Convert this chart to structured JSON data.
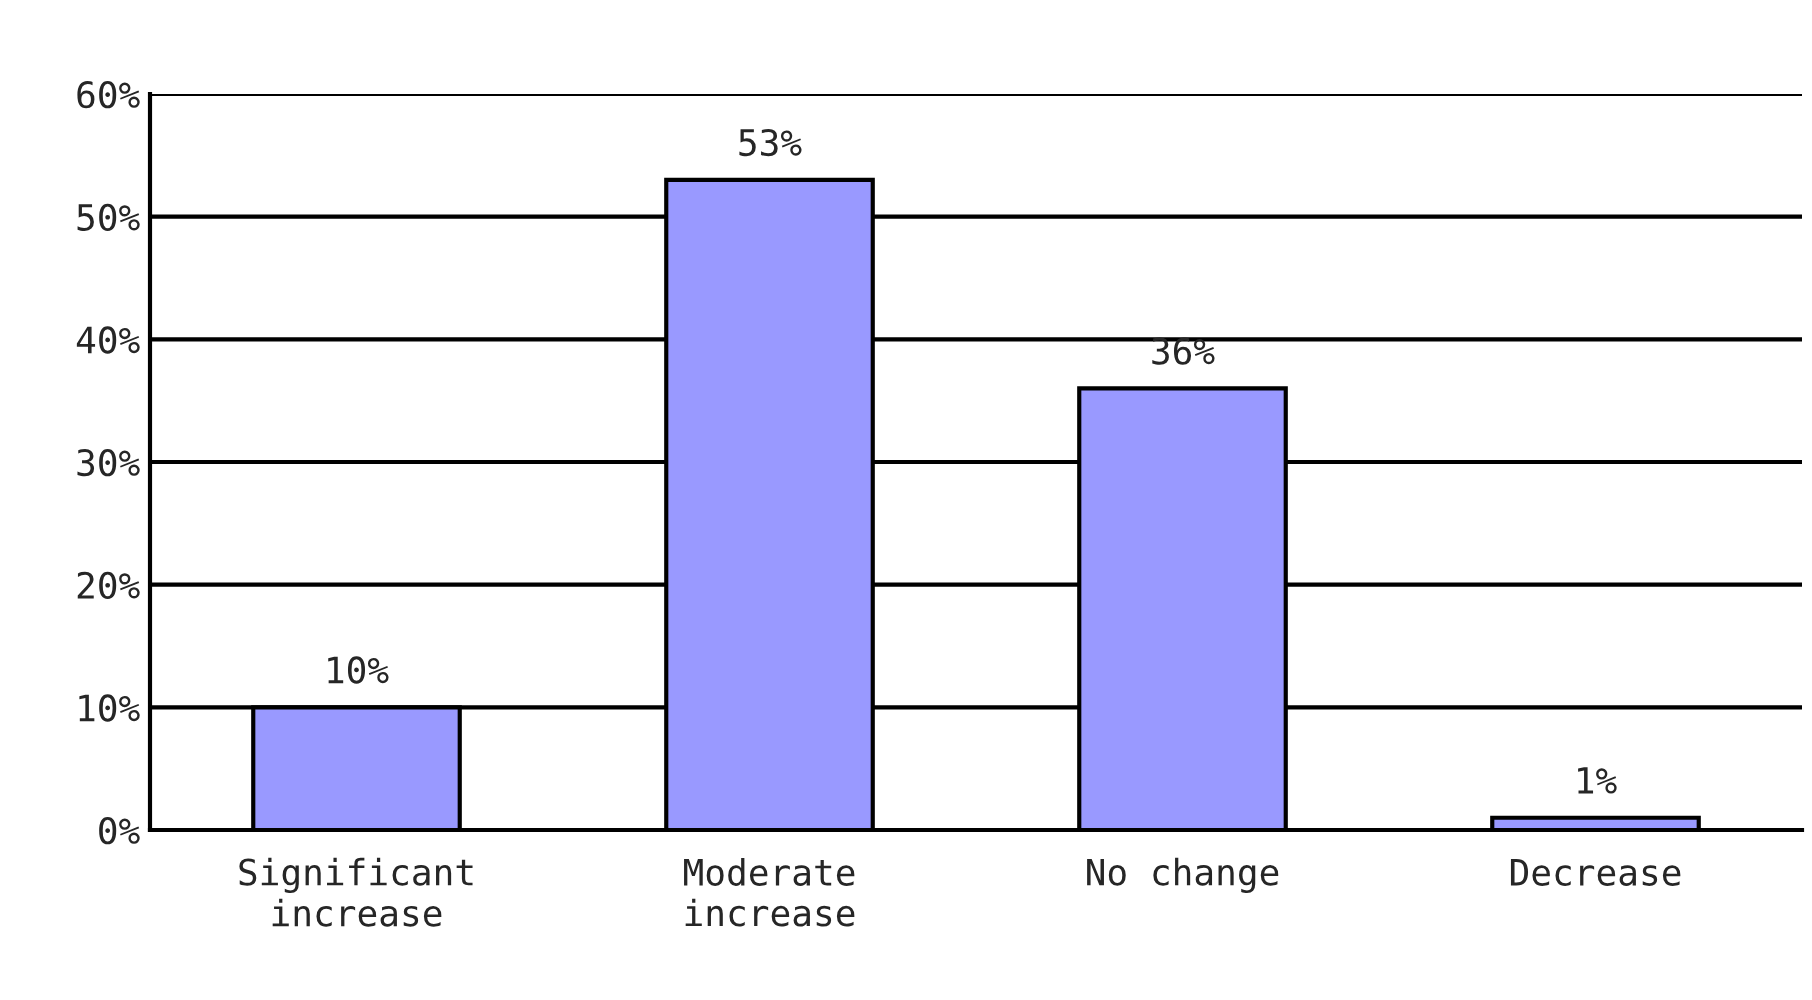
{
  "chart_data": {
    "type": "bar",
    "categories": [
      "Significant\nincrease",
      "Moderate\nincrease",
      "No change",
      "Decrease"
    ],
    "values": [
      10,
      53,
      36,
      1
    ],
    "value_labels": [
      "10%",
      "53%",
      "36%",
      "1%"
    ],
    "color": "#9999ff",
    "ylim": [
      0,
      60
    ],
    "yticks": [
      {
        "value": 0,
        "label": "0%"
      },
      {
        "value": 10,
        "label": "10%"
      },
      {
        "value": 20,
        "label": "20%"
      },
      {
        "value": 30,
        "label": "30%"
      },
      {
        "value": 40,
        "label": "40%"
      },
      {
        "value": 50,
        "label": "50%"
      },
      {
        "value": 60,
        "label": "60%"
      }
    ],
    "grid": "y",
    "legend": false
  }
}
